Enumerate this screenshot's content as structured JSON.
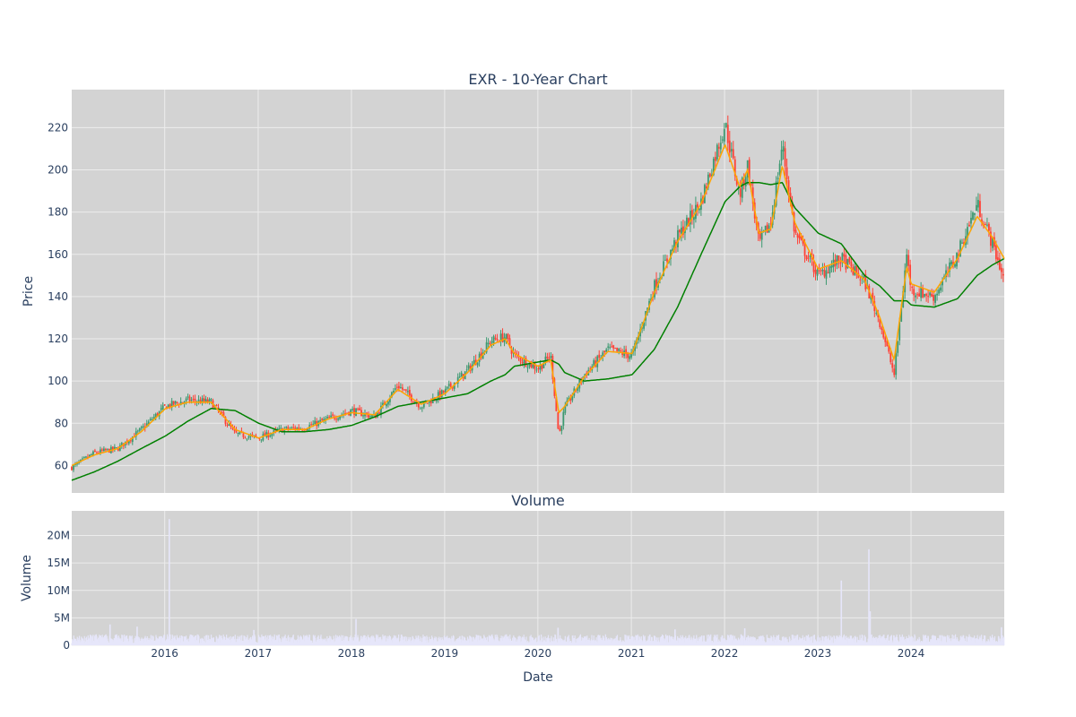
{
  "chart_data": [
    {
      "type": "candlestick",
      "title": "EXR - 10-Year Chart",
      "xlabel": "",
      "ylabel": "Price",
      "x_range": [
        "2015-01-02",
        "2024-12-31"
      ],
      "ylim": [
        47,
        238
      ],
      "yticks": [
        60,
        80,
        100,
        120,
        140,
        160,
        180,
        200,
        220
      ],
      "xtick_labels": [
        "2016",
        "2017",
        "2018",
        "2019",
        "2020",
        "2021",
        "2022",
        "2023",
        "2024"
      ],
      "grid": true,
      "colors": {
        "increasing": "#3d9970",
        "decreasing": "#ff4136",
        "ma_short": "#ffa500",
        "ma_long": "#008000",
        "plot_bg": "#d3d3d3"
      },
      "series": [
        {
          "kind": "close",
          "dates": [
            "2015-01-02",
            "2015-04-01",
            "2015-07-01",
            "2015-10-01",
            "2016-01-04",
            "2016-04-01",
            "2016-07-01",
            "2016-10-03",
            "2017-01-03",
            "2017-04-03",
            "2017-07-03",
            "2017-10-02",
            "2018-01-02",
            "2018-04-02",
            "2018-07-02",
            "2018-10-01",
            "2019-01-02",
            "2019-04-01",
            "2019-07-01",
            "2019-08-26",
            "2019-10-01",
            "2020-01-02",
            "2020-02-20",
            "2020-03-23",
            "2020-04-15",
            "2020-07-01",
            "2020-10-01",
            "2021-01-04",
            "2021-04-01",
            "2021-07-01",
            "2021-10-01",
            "2022-01-03",
            "2022-03-01",
            "2022-04-01",
            "2022-05-15",
            "2022-07-01",
            "2022-08-15",
            "2022-10-03",
            "2023-01-03",
            "2023-04-03",
            "2023-07-03",
            "2023-09-01",
            "2023-10-27",
            "2023-12-15",
            "2024-01-02",
            "2024-04-01",
            "2024-07-01",
            "2024-09-16",
            "2024-11-15",
            "2024-12-31"
          ],
          "values": [
            59,
            66,
            68,
            77,
            88,
            91,
            90,
            75,
            73,
            77,
            78,
            82,
            86,
            83,
            98,
            88,
            95,
            105,
            119,
            121,
            112,
            106,
            112,
            74,
            87,
            103,
            115,
            112,
            145,
            168,
            185,
            222,
            188,
            202,
            165,
            175,
            212,
            170,
            150,
            158,
            147,
            128,
            103,
            160,
            143,
            140,
            160,
            184,
            165,
            148
          ]
        },
        {
          "kind": "moving_average_short",
          "values": [
            60,
            65,
            68,
            76,
            87,
            90,
            90,
            77,
            73,
            77,
            77,
            82,
            85,
            84,
            96,
            89,
            94,
            104,
            117,
            120,
            113,
            107,
            110,
            85,
            88,
            102,
            114,
            113,
            142,
            166,
            184,
            212,
            192,
            200,
            170,
            172,
            202,
            175,
            153,
            157,
            148,
            130,
            110,
            154,
            146,
            142,
            158,
            178,
            168,
            158
          ]
        },
        {
          "kind": "moving_average_long",
          "values": [
            53,
            57,
            62,
            68,
            74,
            81,
            87,
            86,
            80,
            76,
            76,
            77,
            79,
            83,
            88,
            90,
            92,
            94,
            100,
            103,
            107,
            109,
            110,
            108,
            104,
            100,
            101,
            103,
            115,
            135,
            160,
            185,
            192,
            194,
            194,
            193,
            194,
            182,
            170,
            165,
            150,
            145,
            138,
            138,
            136,
            135,
            139,
            150,
            155,
            158
          ]
        }
      ]
    },
    {
      "type": "bar",
      "title": "Volume",
      "xlabel": "Date",
      "ylabel": "Volume",
      "ylim": [
        0,
        24500000
      ],
      "ytick_labels": [
        "0",
        "5M",
        "10M",
        "15M",
        "20M"
      ],
      "xtick_labels": [
        "2016",
        "2017",
        "2018",
        "2019",
        "2020",
        "2021",
        "2022",
        "2023",
        "2024"
      ],
      "grid": true,
      "colors": {
        "bar": "#e6e6fa",
        "plot_bg": "#d3d3d3"
      },
      "spikes": [
        {
          "date": "2015-06-01",
          "value": 3800000
        },
        {
          "date": "2015-09-15",
          "value": 3400000
        },
        {
          "date": "2016-01-19",
          "value": 23000000
        },
        {
          "date": "2016-12-15",
          "value": 2800000
        },
        {
          "date": "2018-01-19",
          "value": 4800000
        },
        {
          "date": "2020-03-20",
          "value": 3200000
        },
        {
          "date": "2021-06-21",
          "value": 2900000
        },
        {
          "date": "2022-03-21",
          "value": 3100000
        },
        {
          "date": "2023-04-03",
          "value": 11800000
        },
        {
          "date": "2023-07-20",
          "value": 17500000
        },
        {
          "date": "2023-07-25",
          "value": 6200000
        },
        {
          "date": "2024-12-20",
          "value": 3300000
        }
      ]
    }
  ]
}
